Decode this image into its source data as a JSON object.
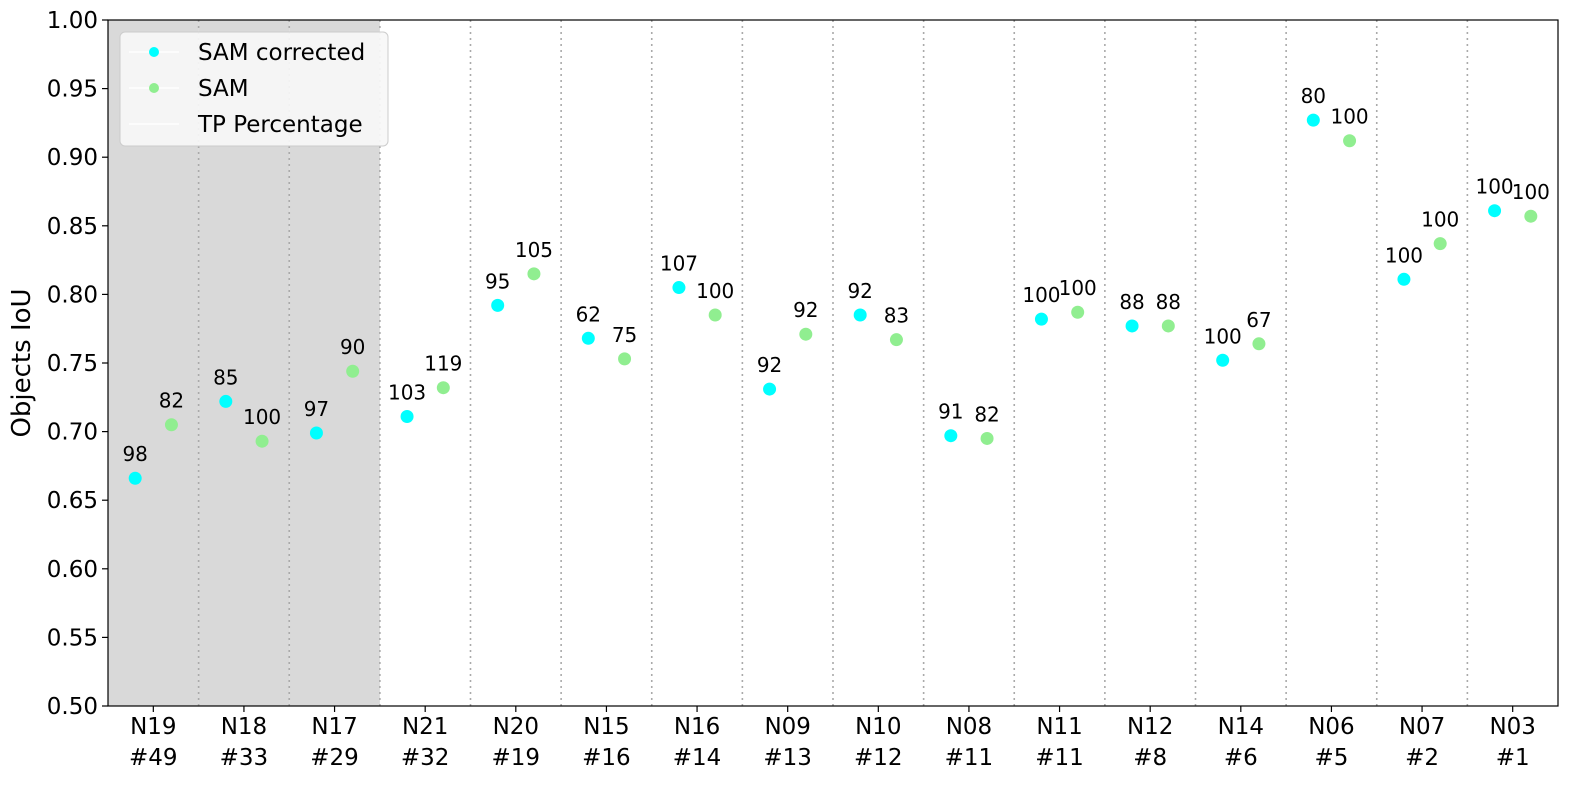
{
  "chart_data": {
    "type": "scatter",
    "title": "",
    "xlabel": "",
    "ylabel": "Objects IoU",
    "ylim": [
      0.5,
      1.0
    ],
    "yticks": [
      "0.50",
      "0.55",
      "0.60",
      "0.65",
      "0.70",
      "0.75",
      "0.80",
      "0.85",
      "0.90",
      "0.95",
      "1.00"
    ],
    "grid": "vertical dotted separators between categories",
    "legend_position": "upper-left",
    "legend": [
      "SAM corrected",
      "SAM",
      "TP Percentage"
    ],
    "categories": [
      {
        "name": "N19",
        "count": "#49"
      },
      {
        "name": "N18",
        "count": "#33"
      },
      {
        "name": "N17",
        "count": "#29"
      },
      {
        "name": "N21",
        "count": "#32"
      },
      {
        "name": "N20",
        "count": "#19"
      },
      {
        "name": "N15",
        "count": "#16"
      },
      {
        "name": "N16",
        "count": "#14"
      },
      {
        "name": "N09",
        "count": "#13"
      },
      {
        "name": "N10",
        "count": "#12"
      },
      {
        "name": "N08",
        "count": "#11"
      },
      {
        "name": "N11",
        "count": "#11"
      },
      {
        "name": "N12",
        "count": "#8"
      },
      {
        "name": "N14",
        "count": "#6"
      },
      {
        "name": "N06",
        "count": "#5"
      },
      {
        "name": "N07",
        "count": "#2"
      },
      {
        "name": "N03",
        "count": "#1"
      }
    ],
    "shaded_categories": [
      "N19",
      "N18",
      "N17"
    ],
    "series": [
      {
        "name": "SAM corrected",
        "color": "#00FFFF",
        "values": [
          0.666,
          0.722,
          0.699,
          0.711,
          0.792,
          0.768,
          0.805,
          0.731,
          0.785,
          0.697,
          0.782,
          0.777,
          0.752,
          0.927,
          0.811,
          0.861
        ],
        "labels": [
          "98",
          "85",
          "97",
          "103",
          "95",
          "62",
          "107",
          "92",
          "92",
          "91",
          "100",
          "88",
          "100",
          "80",
          "100",
          "100"
        ]
      },
      {
        "name": "SAM",
        "color": "#90EE90",
        "values": [
          0.705,
          0.693,
          0.744,
          0.732,
          0.815,
          0.753,
          0.785,
          0.771,
          0.767,
          0.695,
          0.787,
          0.777,
          0.764,
          0.912,
          0.837,
          0.857
        ],
        "labels": [
          "82",
          "100",
          "90",
          "119",
          "105",
          "75",
          "100",
          "92",
          "83",
          "82",
          "100",
          "88",
          "67",
          "100",
          "100",
          "100"
        ]
      }
    ]
  }
}
